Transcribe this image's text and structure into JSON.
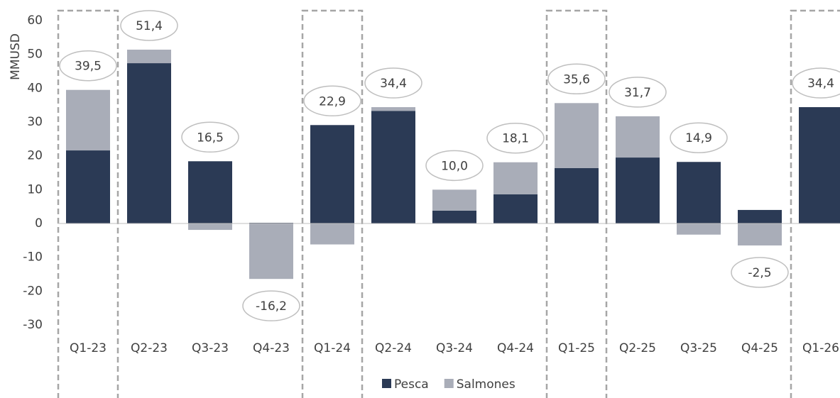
{
  "chart_data": {
    "type": "bar",
    "stacked": true,
    "ylabel": "MMUSD",
    "categories": [
      "Q1-23",
      "Q2-23",
      "Q3-23",
      "Q4-23",
      "Q1-24",
      "Q2-24",
      "Q3-24",
      "Q4-24",
      "Q1-25",
      "Q2-25",
      "Q3-25",
      "Q4-25",
      "Q1-26"
    ],
    "series": [
      {
        "name": "Pesca",
        "color": "#2b3a55",
        "values": [
          21.6,
          47.4,
          18.4,
          0.2,
          29.1,
          33.3,
          3.8,
          8.6,
          16.4,
          19.5,
          18.2,
          4.0,
          34.4
        ]
      },
      {
        "name": "Salmones",
        "color": "#a9adb8",
        "values": [
          17.9,
          4.0,
          -1.9,
          -16.4,
          -6.2,
          1.1,
          6.2,
          9.5,
          19.2,
          12.2,
          -3.3,
          -6.5,
          0
        ]
      }
    ],
    "totals": {
      "values": [
        39.5,
        51.4,
        16.5,
        -16.2,
        22.9,
        34.4,
        10.0,
        18.1,
        35.6,
        31.7,
        14.9,
        -2.5,
        34.4
      ],
      "value_labels": [
        "39,5",
        "51,4",
        "16,5",
        "-16,2",
        "22,9",
        "34,4",
        "10,0",
        "18,1",
        "35,6",
        "31,7",
        "14,9",
        "-2,5",
        "34,4"
      ]
    },
    "ylim": [
      -30,
      60
    ],
    "yticks": [
      -30,
      -20,
      -10,
      0,
      10,
      20,
      30,
      40,
      50,
      60
    ],
    "legend": "bottom"
  }
}
